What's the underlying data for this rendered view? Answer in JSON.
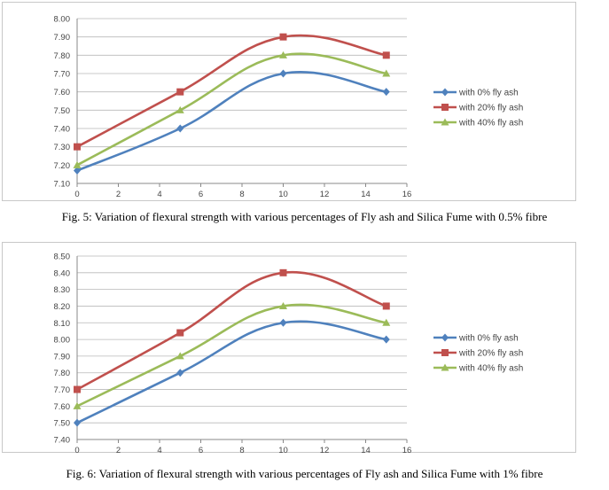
{
  "chart_data": [
    {
      "type": "line",
      "x": [
        0,
        5,
        10,
        15
      ],
      "series": [
        {
          "name": "with 0% fly ash",
          "color": "#4f81bd",
          "marker": "diamond",
          "values": [
            7.17,
            7.4,
            7.7,
            7.6
          ]
        },
        {
          "name": "with 20% fly ash",
          "color": "#c0504d",
          "marker": "square",
          "values": [
            7.3,
            7.6,
            7.9,
            7.8
          ]
        },
        {
          "name": "with 40% fly ash",
          "color": "#9bbb59",
          "marker": "triangle",
          "values": [
            7.2,
            7.5,
            7.8,
            7.7
          ]
        }
      ],
      "xlim": [
        0,
        16
      ],
      "ylim": [
        7.1,
        8.0
      ],
      "xticks": [
        "0",
        "2",
        "4",
        "6",
        "8",
        "10",
        "12",
        "14",
        "16"
      ],
      "yticks": [
        "7.10",
        "7.20",
        "7.30",
        "7.40",
        "7.50",
        "7.60",
        "7.70",
        "7.80",
        "7.90",
        "8.00"
      ],
      "grid": true,
      "legend": "right",
      "smooth": true,
      "caption": "Fig. 5: Variation of flexural strength with various percentages of Fly ash and Silica Fume with 0.5% fibre"
    },
    {
      "type": "line",
      "x": [
        0,
        5,
        10,
        15
      ],
      "series": [
        {
          "name": "with 0% fly ash",
          "color": "#4f81bd",
          "marker": "diamond",
          "values": [
            7.5,
            7.8,
            8.1,
            8.0
          ]
        },
        {
          "name": "with 20% fly ash",
          "color": "#c0504d",
          "marker": "square",
          "values": [
            7.7,
            8.04,
            8.4,
            8.2
          ]
        },
        {
          "name": "with 40% fly ash",
          "color": "#9bbb59",
          "marker": "triangle",
          "values": [
            7.6,
            7.9,
            8.2,
            8.1
          ]
        }
      ],
      "xlim": [
        0,
        16
      ],
      "ylim": [
        7.4,
        8.5
      ],
      "xticks": [
        "0",
        "2",
        "4",
        "6",
        "8",
        "10",
        "12",
        "14",
        "16"
      ],
      "yticks": [
        "7.40",
        "7.50",
        "7.60",
        "7.70",
        "7.80",
        "7.90",
        "8.00",
        "8.10",
        "8.20",
        "8.30",
        "8.40",
        "8.50"
      ],
      "grid": true,
      "legend": "right",
      "smooth": true,
      "caption": "Fig. 6: Variation of flexural strength with various percentages of Fly ash and Silica Fume with 1% fibre"
    }
  ]
}
